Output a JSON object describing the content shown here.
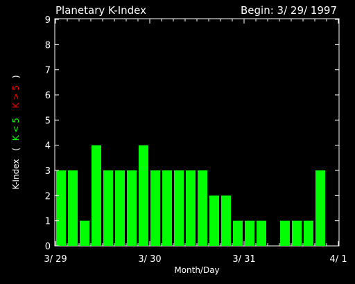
{
  "chart_data": {
    "type": "bar",
    "title": "Planetary K-Index",
    "subtitle": "Begin: 3/ 29/ 1997",
    "xlabel": "Month/Day",
    "ylabel": "K-Index",
    "legend": {
      "open": "(",
      "low_label": "K < 5",
      "high_label": "K > 5",
      "close": ")"
    },
    "ylim": [
      0,
      9
    ],
    "yticks": [
      "0",
      "1",
      "2",
      "3",
      "4",
      "5",
      "6",
      "7",
      "8",
      "9"
    ],
    "xticks": [
      "3/ 29",
      "3/ 30",
      "3/ 31",
      "4/ 1"
    ],
    "intervals_per_day": 8,
    "values": [
      3,
      3,
      1,
      4,
      3,
      3,
      3,
      4,
      3,
      3,
      3,
      3,
      3,
      2,
      2,
      1,
      1,
      1,
      0,
      1,
      1,
      1,
      3,
      0
    ],
    "colors": {
      "low": "#00ff00",
      "high": "#ff0000",
      "axes": "#ffffff",
      "background": "#000000"
    }
  }
}
